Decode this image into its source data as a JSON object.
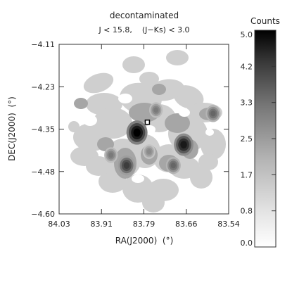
{
  "chart_data": {
    "type": "heatmap",
    "title": "decontaminated",
    "subtitle": "J < 15.8,    (J−Ks) < 3.0",
    "xlabel": "RA(J2000)  (°)",
    "ylabel": "DEC(J2000)  (°)",
    "xlim": [
      84.03,
      83.54
    ],
    "ylim": [
      -4.6,
      -4.11
    ],
    "x_ticks": [
      "84.03",
      "83.91",
      "83.79",
      "83.66",
      "83.54"
    ],
    "y_ticks": [
      "−4.11",
      "−4.23",
      "−4.35",
      "−4.48",
      "−4.60"
    ],
    "colorbar": {
      "label": "Counts",
      "min": 0.0,
      "max": 5.0,
      "ticks": [
        "5.0",
        "4.2",
        "3.3",
        "2.5",
        "1.7",
        "0.8",
        "0.0"
      ]
    },
    "marker": {
      "ra": 83.775,
      "dec": -4.335,
      "shape": "open-square"
    },
    "peaks": [
      {
        "ra": 83.805,
        "dec": -4.365,
        "value": 5.0
      },
      {
        "ra": 83.67,
        "dec": -4.4,
        "value": 4.5
      },
      {
        "ra": 83.835,
        "dec": -4.46,
        "value": 3.8
      },
      {
        "ra": 83.7,
        "dec": -4.46,
        "value": 3.0
      },
      {
        "ra": 83.585,
        "dec": -4.31,
        "value": 3.0
      },
      {
        "ra": 83.88,
        "dec": -4.43,
        "value": 2.6
      },
      {
        "ra": 83.75,
        "dec": -4.3,
        "value": 2.6
      },
      {
        "ra": 83.77,
        "dec": -4.42,
        "value": 2.3
      }
    ],
    "grid": false
  }
}
